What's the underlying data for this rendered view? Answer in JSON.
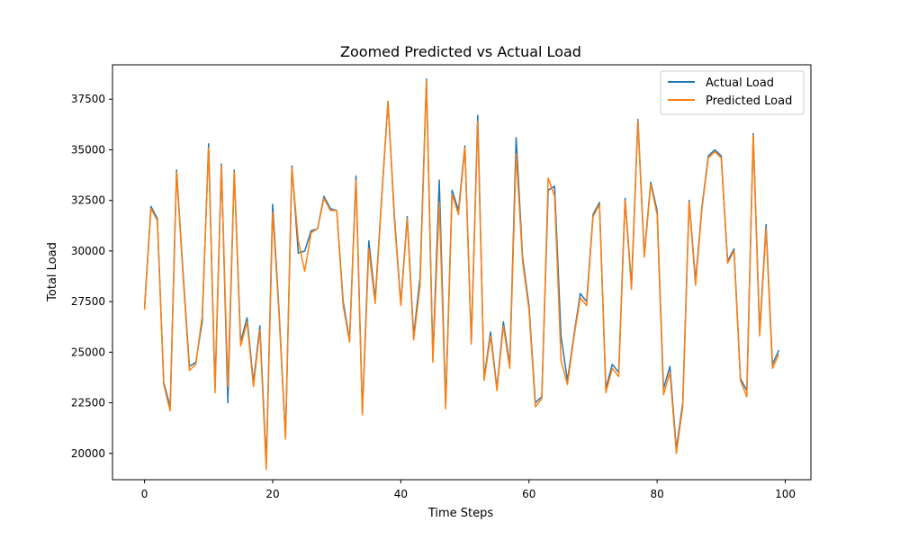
{
  "chart_data": {
    "type": "line",
    "title": "Zoomed Predicted vs Actual Load",
    "xlabel": "Time Steps",
    "ylabel": "Total Load",
    "xlim": [
      -5,
      104
    ],
    "ylim": [
      18700,
      39200
    ],
    "xticks": [
      0,
      20,
      40,
      60,
      80,
      100
    ],
    "xtick_labels": [
      "0",
      "20",
      "40",
      "60",
      "80",
      "100"
    ],
    "yticks": [
      20000,
      22500,
      25000,
      27500,
      30000,
      32500,
      35000,
      37500
    ],
    "ytick_labels": [
      "20000",
      "22500",
      "25000",
      "27500",
      "30000",
      "32500",
      "35000",
      "37500"
    ],
    "grid": false,
    "legend_position": "top-right",
    "x": [
      0,
      1,
      2,
      3,
      4,
      5,
      6,
      7,
      8,
      9,
      10,
      11,
      12,
      13,
      14,
      15,
      16,
      17,
      18,
      19,
      20,
      21,
      22,
      23,
      24,
      25,
      26,
      27,
      28,
      29,
      30,
      31,
      32,
      33,
      34,
      35,
      36,
      37,
      38,
      39,
      40,
      41,
      42,
      43,
      44,
      45,
      46,
      47,
      48,
      49,
      50,
      51,
      52,
      53,
      54,
      55,
      56,
      57,
      58,
      59,
      60,
      61,
      62,
      63,
      64,
      65,
      66,
      67,
      68,
      69,
      70,
      71,
      72,
      73,
      74,
      75,
      76,
      77,
      78,
      79,
      80,
      81,
      82,
      83,
      84,
      85,
      86,
      87,
      88,
      89,
      90,
      91,
      92,
      93,
      94,
      95,
      96,
      97,
      98,
      99
    ],
    "series": [
      {
        "name": "Actual Load",
        "color": "#1f77b4",
        "values": [
          27200,
          32200,
          31600,
          23500,
          22300,
          34000,
          29000,
          24300,
          24500,
          26500,
          35300,
          23200,
          34300,
          22500,
          34000,
          25500,
          26700,
          23500,
          26300,
          19500,
          32300,
          27000,
          20800,
          34200,
          29900,
          30000,
          31000,
          31100,
          32700,
          32100,
          32000,
          27500,
          25600,
          33700,
          22000,
          30500,
          27600,
          32600,
          37400,
          31700,
          27400,
          31700,
          25800,
          28700,
          38500,
          24700,
          33500,
          22400,
          33000,
          32000,
          35200,
          25500,
          36700,
          23700,
          26000,
          23200,
          26500,
          24400,
          35600,
          29700,
          27300,
          22500,
          22800,
          33000,
          33200,
          25800,
          23600,
          25800,
          27900,
          27500,
          31800,
          32400,
          23200,
          24400,
          24000,
          32600,
          28300,
          36500,
          29800,
          33400,
          32000,
          23200,
          24300,
          20200,
          22500,
          32500,
          28500,
          32200,
          34700,
          35000,
          34700,
          29500,
          30100,
          23700,
          23100,
          35800,
          26000,
          31300,
          24400,
          25100
        ]
      },
      {
        "name": "Predicted Load",
        "color": "#ff7f0e",
        "values": [
          27100,
          32100,
          31500,
          23400,
          22100,
          33900,
          28800,
          24100,
          24400,
          26800,
          35100,
          23000,
          34200,
          23300,
          33900,
          25300,
          26500,
          23300,
          26100,
          19200,
          31900,
          26800,
          20700,
          34100,
          30500,
          29000,
          30900,
          31100,
          32600,
          32000,
          32000,
          27300,
          25500,
          33500,
          21900,
          30100,
          27400,
          32500,
          37400,
          31500,
          27300,
          31600,
          25600,
          28300,
          38400,
          24500,
          32400,
          22200,
          32800,
          31800,
          35100,
          25400,
          36400,
          23600,
          25800,
          23100,
          26300,
          24200,
          34800,
          29500,
          27100,
          22300,
          22700,
          33600,
          32700,
          24600,
          23400,
          25700,
          27700,
          27300,
          31700,
          32300,
          23000,
          24200,
          23800,
          32500,
          28100,
          36400,
          29700,
          33300,
          31800,
          22900,
          24000,
          20000,
          22300,
          32400,
          28300,
          32100,
          34600,
          34900,
          34600,
          29400,
          30000,
          23600,
          22800,
          35700,
          25800,
          31100,
          24200,
          24900
        ]
      }
    ]
  }
}
